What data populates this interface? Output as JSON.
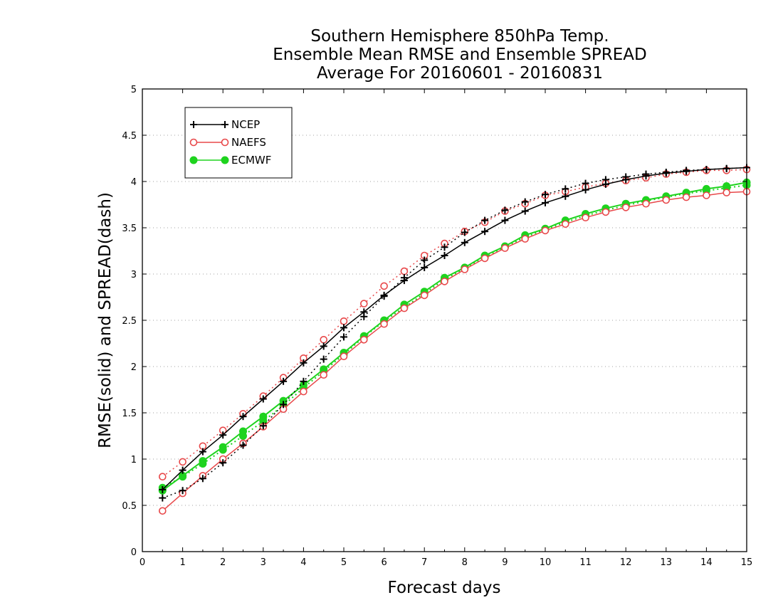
{
  "chart_data": {
    "type": "line",
    "title": [
      "Southern Hemisphere 850hPa Temp.",
      "Ensemble Mean RMSE and Ensemble SPREAD",
      "Average For 20160601 - 20160831"
    ],
    "xlabel": "Forecast days",
    "ylabel": "RMSE(solid) and SPREAD(dash)",
    "xlim": [
      0,
      15
    ],
    "ylim": [
      0,
      5
    ],
    "xticks": [
      "0",
      "1",
      "2",
      "3",
      "4",
      "5",
      "6",
      "7",
      "8",
      "9",
      "10",
      "11",
      "12",
      "13",
      "14",
      "15"
    ],
    "yticks": [
      "0",
      "0.5",
      "1",
      "1.5",
      "2",
      "2.5",
      "3",
      "3.5",
      "4",
      "4.5",
      "5"
    ],
    "grid": "horizontal dotted",
    "legend_position": "top-left",
    "x": [
      0.5,
      1,
      1.5,
      2,
      2.5,
      3,
      3.5,
      4,
      4.5,
      5,
      5.5,
      6,
      6.5,
      7,
      7.5,
      8,
      8.5,
      9,
      9.5,
      10,
      10.5,
      11,
      11.5,
      12,
      12.5,
      13,
      13.5,
      14,
      14.5,
      15
    ],
    "series": [
      {
        "name": "NCEP",
        "color": "#000000",
        "marker": "plus",
        "rmse": [
          0.67,
          0.88,
          1.08,
          1.26,
          1.46,
          1.65,
          1.84,
          2.04,
          2.22,
          2.42,
          2.59,
          2.77,
          2.93,
          3.07,
          3.2,
          3.34,
          3.46,
          3.58,
          3.68,
          3.77,
          3.84,
          3.91,
          3.97,
          4.02,
          4.06,
          4.09,
          4.11,
          4.13,
          4.14,
          4.15
        ],
        "spread": [
          0.58,
          0.66,
          0.79,
          0.96,
          1.15,
          1.36,
          1.59,
          1.84,
          2.08,
          2.32,
          2.54,
          2.76,
          2.96,
          3.15,
          3.29,
          3.45,
          3.58,
          3.69,
          3.78,
          3.86,
          3.92,
          3.98,
          4.02,
          4.05,
          4.08,
          4.1,
          4.12,
          4.13,
          4.14,
          4.15
        ]
      },
      {
        "name": "NAEFS",
        "color": "#e8484a",
        "marker": "circle",
        "rmse": [
          0.44,
          0.63,
          0.82,
          1.0,
          1.17,
          1.35,
          1.54,
          1.73,
          1.91,
          2.11,
          2.29,
          2.46,
          2.63,
          2.77,
          2.92,
          3.05,
          3.17,
          3.28,
          3.38,
          3.47,
          3.54,
          3.61,
          3.67,
          3.72,
          3.76,
          3.8,
          3.83,
          3.85,
          3.88,
          3.89
        ],
        "spread": [
          0.81,
          0.97,
          1.14,
          1.31,
          1.49,
          1.68,
          1.88,
          2.09,
          2.29,
          2.49,
          2.68,
          2.87,
          3.03,
          3.2,
          3.33,
          3.46,
          3.56,
          3.68,
          3.76,
          3.85,
          3.89,
          3.94,
          3.98,
          4.01,
          4.04,
          4.08,
          4.1,
          4.12,
          4.12,
          4.13
        ]
      },
      {
        "name": "ECMWF",
        "color": "#1ed31e",
        "marker": "dot",
        "rmse": [
          0.66,
          0.82,
          0.98,
          1.13,
          1.3,
          1.46,
          1.63,
          1.8,
          1.97,
          2.15,
          2.33,
          2.5,
          2.67,
          2.81,
          2.96,
          3.07,
          3.2,
          3.3,
          3.42,
          3.49,
          3.58,
          3.65,
          3.71,
          3.76,
          3.8,
          3.84,
          3.88,
          3.92,
          3.95,
          3.99
        ],
        "spread": [
          0.69,
          0.81,
          0.95,
          1.1,
          1.25,
          1.41,
          1.58,
          1.77,
          1.95,
          2.13,
          2.32,
          2.49,
          2.64,
          2.79,
          2.94,
          3.06,
          3.18,
          3.29,
          3.4,
          3.48,
          3.56,
          3.63,
          3.69,
          3.74,
          3.79,
          3.83,
          3.87,
          3.9,
          3.93,
          3.96
        ]
      }
    ]
  }
}
